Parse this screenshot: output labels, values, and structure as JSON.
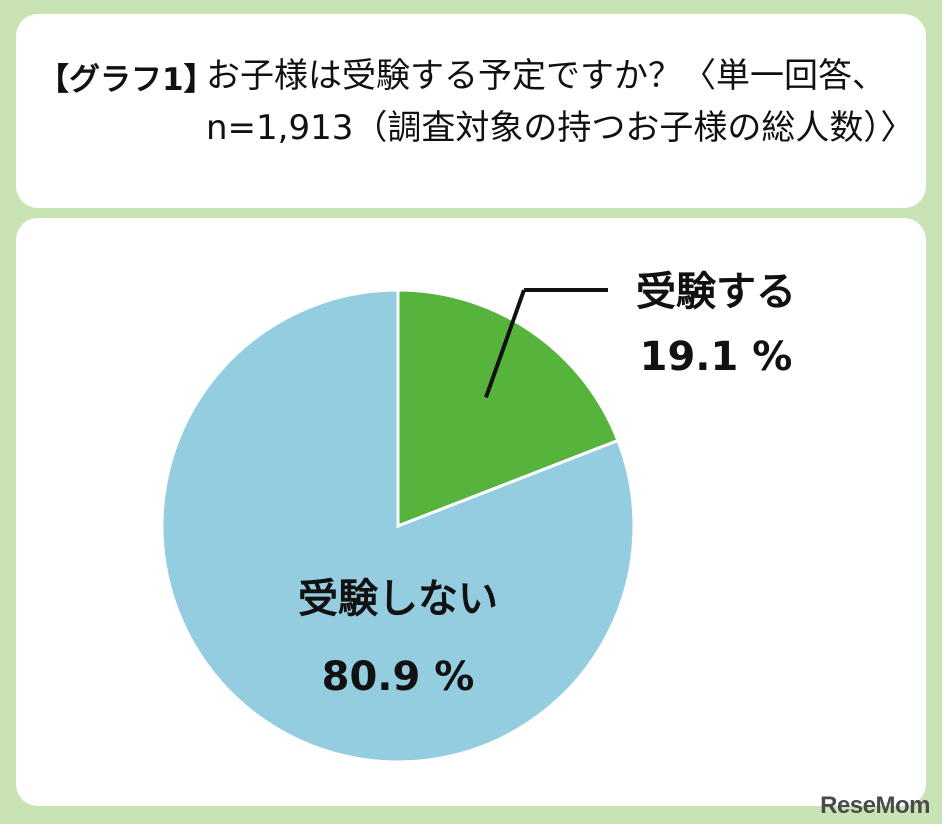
{
  "title": {
    "tag": "【グラフ1】",
    "text": "お子様は受験する予定ですか？〈単一回答、n=1,913（調査対象の持つお子様の総人数）〉"
  },
  "chart_data": {
    "type": "pie",
    "slices": [
      {
        "label": "受験する",
        "value": 19.1,
        "value_text": "19.1 %",
        "color": "#56b33c"
      },
      {
        "label": "受験しない",
        "value": 80.9,
        "value_text": "80.9 %",
        "color": "#95cde0"
      }
    ],
    "start_angle": "12 o'clock",
    "direction": "clockwise"
  },
  "watermark": "ReseMom",
  "colors": {
    "background": "#c9e3b4",
    "panel": "#ffffff"
  }
}
